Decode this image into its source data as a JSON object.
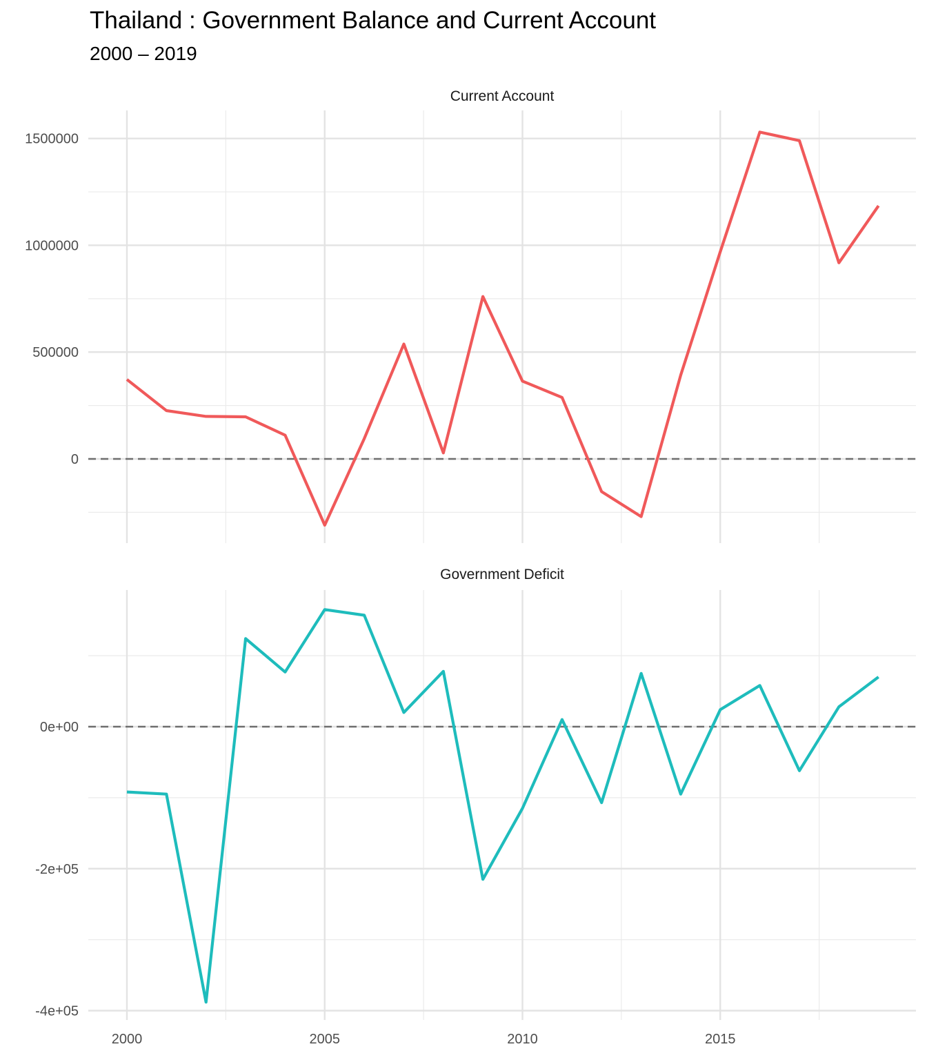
{
  "title": "Thailand : Government Balance and Current Account",
  "subtitle": "2000 – 2019",
  "chart_data": [
    {
      "type": "line",
      "facet": "Current Account",
      "color": "#f0595a",
      "x": [
        2000,
        2001,
        2002,
        2003,
        2004,
        2005,
        2006,
        2007,
        2008,
        2009,
        2010,
        2011,
        2012,
        2013,
        2014,
        2015,
        2016,
        2017,
        2018,
        2019
      ],
      "values": [
        372000,
        226000,
        199000,
        197000,
        111000,
        -310000,
        95000,
        538000,
        28000,
        760000,
        364000,
        288000,
        -153000,
        -270000,
        392000,
        970000,
        1530000,
        1490000,
        918000,
        1185000
      ],
      "ylim": [
        -390000,
        1620000
      ],
      "yticks": [
        0,
        500000,
        1000000,
        1500000
      ],
      "ytick_labels": [
        "0",
        "500000",
        "1000000",
        "1500000"
      ],
      "reference_line": 0
    },
    {
      "type": "line",
      "facet": "Government Deficit",
      "color": "#1ebcbc",
      "x": [
        2000,
        2001,
        2002,
        2003,
        2004,
        2005,
        2006,
        2007,
        2008,
        2009,
        2010,
        2011,
        2012,
        2013,
        2014,
        2015,
        2016,
        2017,
        2018,
        2019
      ],
      "values": [
        -92000,
        -95000,
        -388000,
        124000,
        77000,
        165000,
        157000,
        20000,
        78000,
        -215000,
        -115000,
        10000,
        -107000,
        75000,
        -95000,
        24000,
        58000,
        -62000,
        28000,
        70000
      ],
      "ylim": [
        -400000,
        193000
      ],
      "yticks": [
        -400000,
        -200000,
        0
      ],
      "ytick_labels": [
        "-4e+05",
        "-2e+05",
        "0e+00"
      ],
      "reference_line": 0
    }
  ],
  "x_axis": {
    "ticks": [
      2000,
      2005,
      2010,
      2015
    ],
    "tick_labels": [
      "2000",
      "2005",
      "2010",
      "2015"
    ]
  },
  "grid": true,
  "legend": "none"
}
